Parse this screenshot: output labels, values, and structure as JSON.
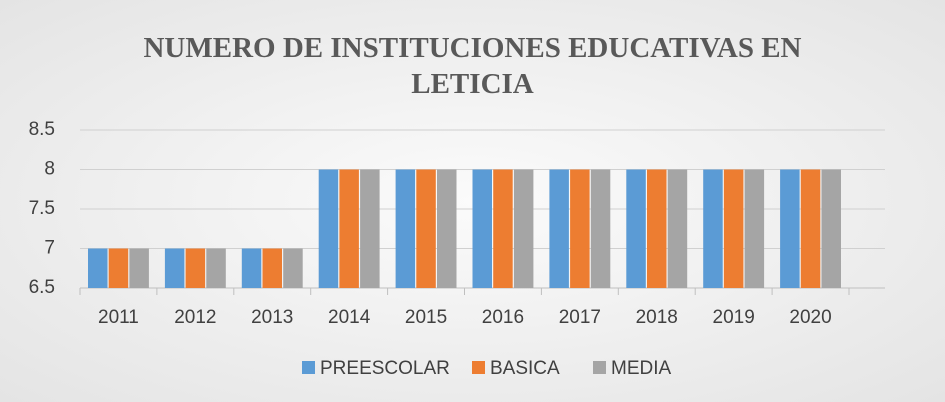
{
  "chart_data": {
    "type": "bar",
    "title": "NUMERO DE INSTITUCIONES EDUCATIVAS EN LETICIA",
    "categories": [
      "2011",
      "2012",
      "2013",
      "2014",
      "2015",
      "2016",
      "2017",
      "2018",
      "2019",
      "2020"
    ],
    "series": [
      {
        "name": "PREESCOLAR",
        "color": "#5b9bd5",
        "values": [
          7,
          7,
          7,
          8,
          8,
          8,
          8,
          8,
          8,
          8
        ]
      },
      {
        "name": "BASICA",
        "color": "#ed7d31",
        "values": [
          7,
          7,
          7,
          8,
          8,
          8,
          8,
          8,
          8,
          8
        ]
      },
      {
        "name": "MEDIA",
        "color": "#a5a5a5",
        "values": [
          7,
          7,
          7,
          8,
          8,
          8,
          8,
          8,
          8,
          8
        ]
      }
    ],
    "ylim": [
      6.5,
      8.5
    ],
    "yticks": [
      6.5,
      7,
      7.5,
      8,
      8.5
    ],
    "grid": true,
    "legend": "bottom"
  }
}
